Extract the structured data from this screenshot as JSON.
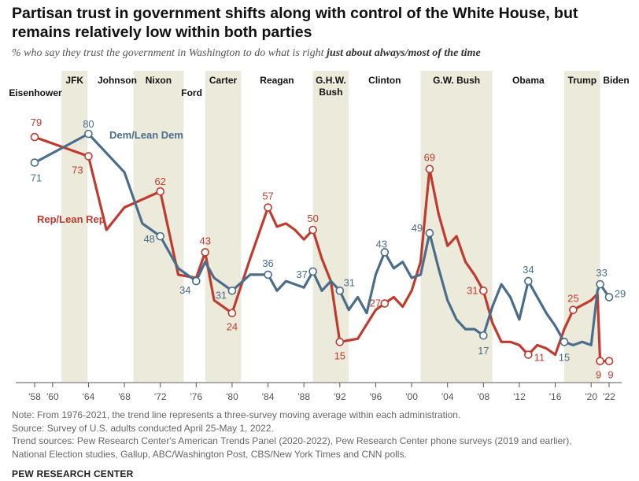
{
  "title": "Partisan trust in government shifts along with control of the White House, but remains relatively low within both parties",
  "subtitle_prefix": "% who say they trust the government in Washington to do what is right ",
  "subtitle_emphasis": "just about always/most of the time",
  "notes": [
    "Note: From 1976-2021, the trend line represents a three-survey moving average within each administration.",
    "Source: Survey of U.S. adults conducted April 25-May 1, 2022.",
    "Trend sources: Pew Research Center's American Trends Panel (2020-2022), Pew Research Center phone surveys (2019 and earlier),",
    "National Election studies, Gallup, ABC/Washington Post, CBS/New York Times and CNN polls."
  ],
  "brand": "PEW RESEARCH CENTER",
  "colors": {
    "rep": "#bf3b2f",
    "dem": "#4a6d8c",
    "band": "#eceadb"
  },
  "chart_data": {
    "type": "line",
    "xlim": [
      1958,
      2022
    ],
    "ylim": [
      5,
      85
    ],
    "x_ticks": [
      {
        "year": 1958,
        "label": "'58"
      },
      {
        "year": 1960,
        "label": "'60"
      },
      {
        "year": 1964,
        "label": "'64"
      },
      {
        "year": 1968,
        "label": "'68"
      },
      {
        "year": 1972,
        "label": "'72"
      },
      {
        "year": 1976,
        "label": "'76"
      },
      {
        "year": 1980,
        "label": "'80"
      },
      {
        "year": 1984,
        "label": "'84"
      },
      {
        "year": 1988,
        "label": "'88"
      },
      {
        "year": 1992,
        "label": "'92"
      },
      {
        "year": 1996,
        "label": "'96"
      },
      {
        "year": 2000,
        "label": "'00"
      },
      {
        "year": 2004,
        "label": "'04"
      },
      {
        "year": 2008,
        "label": "'08"
      },
      {
        "year": 2012,
        "label": "'12"
      },
      {
        "year": 2016,
        "label": "'16"
      },
      {
        "year": 2020,
        "label": "'20"
      },
      {
        "year": 2022,
        "label": "'22"
      }
    ],
    "presidents": [
      {
        "name": "Eisenhower",
        "start": 1958,
        "end": 1961,
        "shaded": false,
        "row": 2
      },
      {
        "name": "JFK",
        "start": 1961,
        "end": 1963.9,
        "shaded": true,
        "row": 1
      },
      {
        "name": "Johnson",
        "start": 1963.9,
        "end": 1969,
        "shaded": false,
        "row": 1
      },
      {
        "name": "Nixon",
        "start": 1969,
        "end": 1974.6,
        "shaded": true,
        "row": 1
      },
      {
        "name": "Ford",
        "start": 1974.6,
        "end": 1977,
        "shaded": false,
        "row": 2
      },
      {
        "name": "Carter",
        "start": 1977,
        "end": 1981,
        "shaded": true,
        "row": 1
      },
      {
        "name": "Reagan",
        "start": 1981,
        "end": 1989,
        "shaded": false,
        "row": 1
      },
      {
        "name": "G.H.W. Bush",
        "name_lines": [
          "G.H.W.",
          "Bush"
        ],
        "start": 1989,
        "end": 1993,
        "shaded": true,
        "row": 1
      },
      {
        "name": "Clinton",
        "start": 1993,
        "end": 2001,
        "shaded": false,
        "row": 1
      },
      {
        "name": "G.W. Bush",
        "start": 2001,
        "end": 2009,
        "shaded": true,
        "row": 1
      },
      {
        "name": "Obama",
        "start": 2009,
        "end": 2017,
        "shaded": false,
        "row": 1
      },
      {
        "name": "Trump",
        "start": 2017,
        "end": 2021,
        "shaded": true,
        "row": 1
      },
      {
        "name": "Biden",
        "start": 2021,
        "end": 2022.5,
        "shaded": false,
        "row": 1
      }
    ],
    "series": [
      {
        "name": "Rep/Lean Rep",
        "color": "#bf3b2f",
        "points": [
          [
            1958,
            79
          ],
          [
            1964,
            73
          ],
          [
            1966,
            50
          ],
          [
            1968,
            57
          ],
          [
            1972,
            62
          ],
          [
            1974,
            36
          ],
          [
            1976,
            35
          ],
          [
            1977,
            43
          ],
          [
            1978,
            28
          ],
          [
            1980,
            24
          ],
          [
            1982,
            41
          ],
          [
            1984,
            57
          ],
          [
            1985,
            51
          ],
          [
            1986,
            52
          ],
          [
            1987,
            50
          ],
          [
            1988,
            47
          ],
          [
            1989,
            50
          ],
          [
            1990,
            41
          ],
          [
            1991,
            34
          ],
          [
            1992,
            15
          ],
          [
            1994,
            16
          ],
          [
            1996,
            25
          ],
          [
            1997,
            27
          ],
          [
            1998,
            29
          ],
          [
            1999,
            26
          ],
          [
            2000,
            31
          ],
          [
            2001,
            40
          ],
          [
            2002,
            69
          ],
          [
            2003,
            55
          ],
          [
            2004,
            45
          ],
          [
            2005,
            48
          ],
          [
            2006,
            40
          ],
          [
            2007,
            36
          ],
          [
            2008,
            31
          ],
          [
            2009,
            21
          ],
          [
            2010,
            15
          ],
          [
            2011,
            15
          ],
          [
            2012,
            14
          ],
          [
            2013,
            11
          ],
          [
            2014,
            14
          ],
          [
            2015,
            13
          ],
          [
            2016,
            11
          ],
          [
            2017,
            19
          ],
          [
            2018,
            25
          ],
          [
            2020,
            28
          ],
          [
            2020.7,
            30
          ],
          [
            2021,
            9
          ],
          [
            2022,
            9
          ]
        ],
        "labeled": [
          [
            1958,
            79,
            "79"
          ],
          [
            1964,
            73,
            "73"
          ],
          [
            1972,
            62,
            "62"
          ],
          [
            1977,
            43,
            "43"
          ],
          [
            1980,
            24,
            "24"
          ],
          [
            1984,
            57,
            "57"
          ],
          [
            1989,
            50,
            "50"
          ],
          [
            1992,
            15,
            "15"
          ],
          [
            1997,
            27,
            "27"
          ],
          [
            2002,
            69,
            "69"
          ],
          [
            2008,
            31,
            "31"
          ],
          [
            2013,
            11,
            "11"
          ],
          [
            2018,
            25,
            "25"
          ],
          [
            2021,
            9,
            "9"
          ],
          [
            2022,
            9,
            "9"
          ]
        ]
      },
      {
        "name": "Dem/Lean Dem",
        "color": "#4a6d8c",
        "points": [
          [
            1958,
            71
          ],
          [
            1964,
            80
          ],
          [
            1968,
            68
          ],
          [
            1970,
            52
          ],
          [
            1972,
            48
          ],
          [
            1974,
            38
          ],
          [
            1976,
            34
          ],
          [
            1977,
            40
          ],
          [
            1978,
            35
          ],
          [
            1980,
            31
          ],
          [
            1982,
            36
          ],
          [
            1984,
            36
          ],
          [
            1985,
            31
          ],
          [
            1986,
            34
          ],
          [
            1987,
            33
          ],
          [
            1988,
            32
          ],
          [
            1989,
            37
          ],
          [
            1990,
            31
          ],
          [
            1991,
            34
          ],
          [
            1992,
            31
          ],
          [
            1993,
            25
          ],
          [
            1994,
            29
          ],
          [
            1995,
            24
          ],
          [
            1996,
            36
          ],
          [
            1997,
            43
          ],
          [
            1998,
            38
          ],
          [
            1999,
            40
          ],
          [
            2000,
            35
          ],
          [
            2001,
            36
          ],
          [
            2002,
            49
          ],
          [
            2003,
            38
          ],
          [
            2004,
            28
          ],
          [
            2005,
            22
          ],
          [
            2006,
            19
          ],
          [
            2007,
            19
          ],
          [
            2008,
            17
          ],
          [
            2009,
            26
          ],
          [
            2010,
            33
          ],
          [
            2011,
            29
          ],
          [
            2012,
            22
          ],
          [
            2013,
            34
          ],
          [
            2014,
            29
          ],
          [
            2015,
            24
          ],
          [
            2016,
            20
          ],
          [
            2017,
            15
          ],
          [
            2018,
            14
          ],
          [
            2019,
            15
          ],
          [
            2020,
            14
          ],
          [
            2020.7,
            31
          ],
          [
            2021,
            33
          ],
          [
            2022,
            29
          ]
        ],
        "labeled": [
          [
            1958,
            71,
            "71"
          ],
          [
            1964,
            80,
            "80"
          ],
          [
            1972,
            48,
            "48"
          ],
          [
            1976,
            34,
            "34"
          ],
          [
            1980,
            31,
            "31"
          ],
          [
            1984,
            36,
            "36"
          ],
          [
            1989,
            37,
            "37"
          ],
          [
            1992,
            31,
            "31"
          ],
          [
            1997,
            43,
            "43"
          ],
          [
            2002,
            49,
            "49"
          ],
          [
            2008,
            17,
            "17"
          ],
          [
            2013,
            34,
            "34"
          ],
          [
            2017,
            15,
            "15"
          ],
          [
            2021,
            33,
            "33"
          ],
          [
            2022,
            29,
            "29"
          ]
        ]
      }
    ],
    "series_labels": [
      {
        "series": "Dem/Lean Dem",
        "text": "Dem/Lean Dem"
      },
      {
        "series": "Rep/Lean Rep",
        "text": "Rep/Lean Rep"
      }
    ],
    "grid": false,
    "legend": "inline"
  }
}
